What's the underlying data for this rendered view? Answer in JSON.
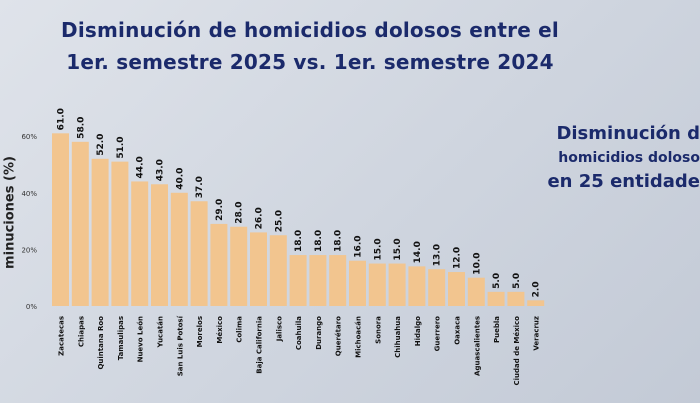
{
  "title_line1": "Disminución de homicidios dolosos entre el",
  "title_line2": "1er. semestre 2025 vs. 1er. semestre 2024",
  "side_line1": "Disminución d",
  "side_line2": "homicidios doloso",
  "side_line3": "en 25 entidade",
  "ylabel": "minuciones (%)",
  "colors": {
    "bar": "#f2c58f",
    "title": "#1b2a6b"
  },
  "chart_data": {
    "type": "bar",
    "categories": [
      "Zacatecas",
      "Chiapas",
      "Quintana Roo",
      "Tamaulipas",
      "Nuevo León",
      "Yucatán",
      "San Luis Potosí",
      "Morelos",
      "México",
      "Colima",
      "Baja California",
      "Jalisco",
      "Coahuila",
      "Durango",
      "Querétaro",
      "Michoacán",
      "Sonora",
      "Chihuahua",
      "Hidalgo",
      "Guerrero",
      "Oaxaca",
      "Aguascalientes",
      "Puebla",
      "Ciudad de México",
      "Veracruz"
    ],
    "values": [
      61.0,
      58.0,
      52.0,
      51.0,
      44.0,
      43.0,
      40.0,
      37.0,
      29.0,
      28.0,
      26.0,
      25.0,
      18.0,
      18.0,
      18.0,
      16.0,
      15.0,
      15.0,
      14.0,
      13.0,
      12.0,
      10.0,
      5.0,
      5.0,
      2.0
    ],
    "value_labels": [
      "61.0",
      "58.0",
      "52.0",
      "51.0",
      "44.0",
      "43.0",
      "40.0",
      "37.0",
      "29.0",
      "28.0",
      "26.0",
      "25.0",
      "18.0",
      "18.0",
      "18.0",
      "16.0",
      "15.0",
      "15.0",
      "14.0",
      "13.0",
      "12.0",
      "10.0",
      "5.0",
      "5.0",
      "2.0"
    ],
    "yticks": [
      0,
      20,
      40,
      60
    ],
    "ytick_labels": [
      "0%",
      "20%",
      "40%",
      "60%"
    ],
    "ylim": [
      0,
      65
    ],
    "grid": false
  }
}
